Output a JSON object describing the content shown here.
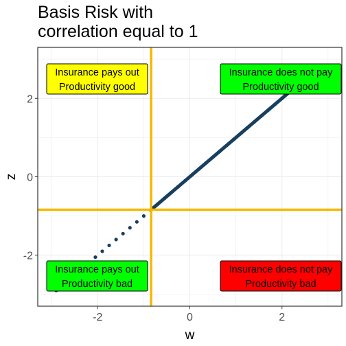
{
  "chart_data": {
    "type": "scatter",
    "title_lines": [
      "Basis Risk with",
      "correlation equal to 1"
    ],
    "xlabel": "w",
    "ylabel": "z",
    "xlim": [
      -3.3,
      3.3
    ],
    "ylim": [
      -3.3,
      3.3
    ],
    "x_ticks": [
      -2,
      0,
      2
    ],
    "y_ticks": [
      -2,
      0,
      2
    ],
    "x_tick_labels": [
      "-2",
      "0",
      "2"
    ],
    "y_tick_labels": [
      "-2",
      "0",
      "2"
    ],
    "grid": true,
    "point_color": "#173F5F",
    "threshold_color": "#F5B800",
    "thresholds": {
      "vertical_w": -0.84,
      "horizontal_z": -0.84
    },
    "series": [
      {
        "points": [
          [
            -2.9,
            -2.9
          ],
          [
            -2.05,
            -2.05
          ],
          [
            -1.9,
            -1.9
          ],
          [
            -1.75,
            -1.75
          ],
          [
            -1.6,
            -1.6
          ],
          [
            -1.45,
            -1.45
          ],
          [
            -1.3,
            -1.3
          ],
          [
            -1.15,
            -1.15
          ],
          [
            -1.0,
            -1.0
          ],
          [
            -0.85,
            -0.85
          ],
          [
            -0.7,
            -0.7
          ],
          [
            -0.55,
            -0.55
          ],
          [
            -0.4,
            -0.4
          ],
          [
            -0.25,
            -0.25
          ],
          [
            -0.1,
            -0.1
          ],
          [
            0.05,
            0.05
          ],
          [
            0.2,
            0.2
          ],
          [
            0.35,
            0.35
          ],
          [
            0.5,
            0.5
          ],
          [
            0.65,
            0.65
          ],
          [
            0.8,
            0.8
          ],
          [
            0.95,
            0.95
          ],
          [
            1.1,
            1.1
          ],
          [
            1.25,
            1.25
          ],
          [
            1.4,
            1.4
          ],
          [
            1.55,
            1.55
          ],
          [
            1.7,
            1.7
          ],
          [
            1.85,
            1.85
          ],
          [
            2.0,
            2.0
          ],
          [
            2.15,
            2.15
          ]
        ]
      }
    ],
    "annotations": [
      {
        "lines": [
          "Insurance pays out",
          "Productivity good"
        ],
        "fill": "#FFFF00",
        "pos": "top-left"
      },
      {
        "lines": [
          "Insurance does not pay",
          "Productivity good"
        ],
        "fill": "#00FF00",
        "pos": "top-right"
      },
      {
        "lines": [
          "Insurance pays out",
          "Productivity bad"
        ],
        "fill": "#00FF00",
        "pos": "bottom-left"
      },
      {
        "lines": [
          "Insurance does not pay",
          "Productivity bad"
        ],
        "fill": "#FF0000",
        "pos": "bottom-right"
      }
    ]
  }
}
